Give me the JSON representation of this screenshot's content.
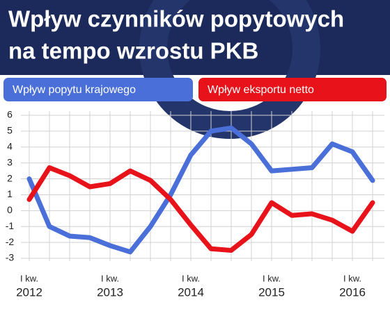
{
  "chart_data": {
    "type": "line",
    "title": "Wpływ czynników popytowych",
    "subtitle": "na tempo wzrostu PKB",
    "quarter_label": "I kw.",
    "categories": [
      "2012",
      null,
      null,
      null,
      "2013",
      null,
      null,
      null,
      "2014",
      null,
      null,
      null,
      "2015",
      null,
      null,
      null,
      "2016",
      null
    ],
    "series": [
      {
        "name": "Wpływ popytu krajowego",
        "color": "#4a6fd8",
        "values": [
          2.0,
          -1.0,
          -1.6,
          -1.7,
          -2.2,
          -2.6,
          -1.0,
          1.0,
          3.5,
          5.0,
          5.2,
          4.2,
          2.5,
          2.6,
          2.7,
          4.2,
          3.7,
          1.9
        ]
      },
      {
        "name": "Wpływ eksportu netto",
        "color": "#e8121a",
        "values": [
          0.7,
          2.7,
          2.2,
          1.5,
          1.7,
          2.5,
          1.9,
          0.7,
          -0.9,
          -2.4,
          -2.5,
          -1.5,
          0.5,
          -0.3,
          -0.2,
          -0.6,
          -1.3,
          0.5
        ]
      }
    ],
    "ylim": [
      -3,
      6
    ],
    "yticks": [
      -3,
      -2,
      -1,
      0,
      1,
      2,
      3,
      4,
      5,
      6
    ],
    "grid": true
  }
}
